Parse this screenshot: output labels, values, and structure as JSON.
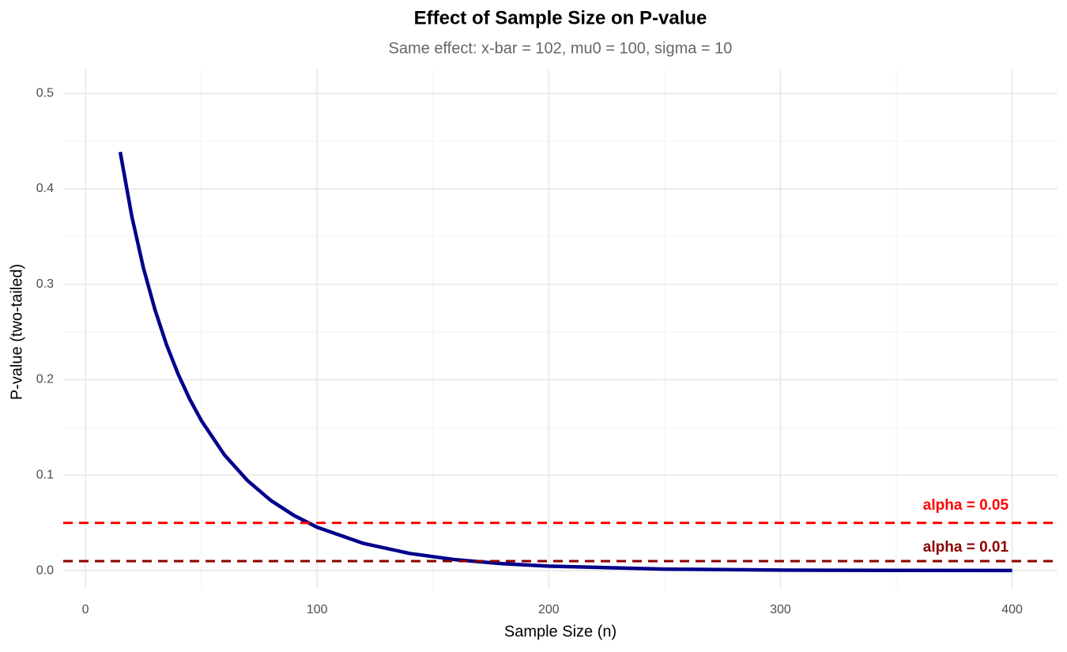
{
  "chart_data": {
    "type": "line",
    "title": "Effect of Sample Size on P-value",
    "subtitle": "Same effect: x-bar = 102, mu0 = 100, sigma = 10",
    "x_label": "Sample Size (n)",
    "y_label": "P-value (two-tailed)",
    "x": [
      15,
      20,
      25,
      30,
      35,
      40,
      45,
      50,
      60,
      70,
      80,
      90,
      100,
      120,
      140,
      160,
      180,
      200,
      250,
      300,
      350,
      400
    ],
    "series": [
      {
        "name": "P-value",
        "color": "#00008b",
        "values": [
          0.4386,
          0.3711,
          0.3173,
          0.2733,
          0.2367,
          0.2059,
          0.1797,
          0.1573,
          0.1213,
          0.0943,
          0.0736,
          0.0578,
          0.0455,
          0.0285,
          0.018,
          0.0114,
          0.0073,
          0.0047,
          0.0016,
          0.0005,
          0.0002,
          0.0001
        ]
      }
    ],
    "reference_lines": [
      {
        "value": 0.05,
        "color": "#ff0000"
      },
      {
        "value": 0.01,
        "color": "#8b0000"
      }
    ],
    "annotations": [
      {
        "text": "alpha = 0.05",
        "x": 380,
        "y": 0.068,
        "color": "#ff0000"
      },
      {
        "text": "alpha = 0.01",
        "x": 380,
        "y": 0.024,
        "color": "#8b0000"
      }
    ],
    "xlim": [
      -9.6,
      419.6
    ],
    "ylim": [
      -0.019,
      0.525
    ],
    "xticks": [
      0,
      100,
      200,
      300,
      400
    ],
    "yticks": [
      {
        "value": 0,
        "label": "0.0"
      },
      0.1,
      0.2,
      0.3,
      0.4,
      0.5
    ],
    "grid": true
  }
}
